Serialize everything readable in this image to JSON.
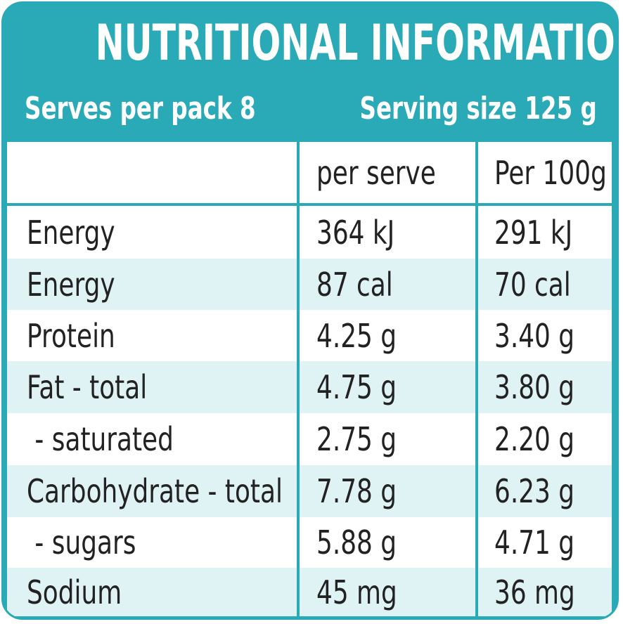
{
  "title": "NUTRITIONAL INFORMATION",
  "serves_per_pack": "Serves per pack 8",
  "serving_size": "Serving size 125 g",
  "columns": [
    "",
    "per serve",
    "Per 100g"
  ],
  "rows": [
    {
      "name": "Energy",
      "per_serve": "364 kJ",
      "per_100g": "291 kJ"
    },
    {
      "name": "Energy",
      "per_serve": "87 cal",
      "per_100g": "70 cal"
    },
    {
      "name": "Protein",
      "per_serve": "4.25 g",
      "per_100g": "3.40 g"
    },
    {
      "name": "Fat - total",
      "per_serve": "4.75 g",
      "per_100g": "3.80 g"
    },
    {
      "name": " - saturated",
      "per_serve": "2.75 g",
      "per_100g": "2.20 g"
    },
    {
      "name": "Carbohydrate - total",
      "per_serve": "7.78 g",
      "per_100g": "6.23 g"
    },
    {
      "name": " - sugars",
      "per_serve": "5.88 g",
      "per_100g": "4.71 g"
    },
    {
      "name": "Sodium",
      "per_serve": "45 mg",
      "per_100g": "36 mg"
    }
  ],
  "colors": {
    "accent": "#2aa9b6",
    "shade": "#dff2f4",
    "text": "#222222"
  }
}
